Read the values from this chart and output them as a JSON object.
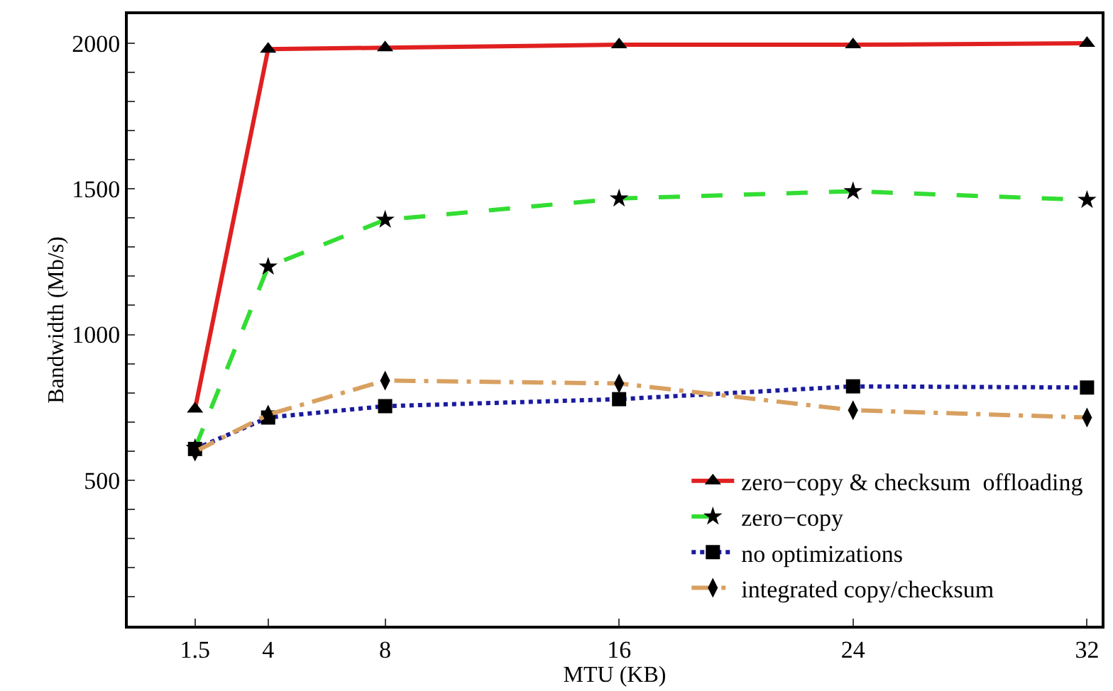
{
  "chart_data": {
    "type": "line",
    "xlabel": "MTU (KB)",
    "ylabel": "Bandwidth (Mb/s)",
    "x": [
      1.5,
      4,
      8,
      16,
      24,
      32
    ],
    "xlim": [
      -0.8,
      32.5
    ],
    "xticks": [
      1.5,
      4,
      8,
      16,
      24,
      32
    ],
    "ylim": [
      0,
      2100
    ],
    "yticks": [
      {
        "value": 100,
        "label": null
      },
      {
        "value": 200,
        "label": null
      },
      {
        "value": 300,
        "label": null
      },
      {
        "value": 400,
        "label": null
      },
      500,
      {
        "value": 600,
        "label": null
      },
      {
        "value": 700,
        "label": null
      },
      {
        "value": 800,
        "label": null
      },
      {
        "value": 900,
        "label": null
      },
      1000,
      {
        "value": 1100,
        "label": null
      },
      {
        "value": 1200,
        "label": null
      },
      {
        "value": 1300,
        "label": null
      },
      {
        "value": 1400,
        "label": null
      },
      1500,
      {
        "value": 1600,
        "label": null
      },
      {
        "value": 1700,
        "label": null
      },
      {
        "value": 1800,
        "label": null
      },
      {
        "value": 1900,
        "label": null
      },
      2000
    ],
    "grid": false,
    "legend": "bottom right",
    "series": [
      {
        "name": "zero−copy & checksum  offloading",
        "color": "#e02020",
        "marker": "triangle",
        "line_style": "solid",
        "values": [
          744,
          1980,
          1985,
          1995,
          1995,
          2000
        ]
      },
      {
        "name": "zero−copy",
        "color": "#33dd33",
        "marker": "star",
        "line_style": "dashed",
        "values": [
          610,
          1233,
          1394,
          1467,
          1492,
          1462
        ]
      },
      {
        "name": "no optimizations",
        "color": "#1a1aa0",
        "marker": "square",
        "line_style": "dotted",
        "values": [
          607,
          715,
          754,
          778,
          822,
          818
        ]
      },
      {
        "name": "integrated copy/checksum",
        "color": "#d8a060",
        "marker": "diamond",
        "line_style": "dashdot",
        "values": [
          598,
          725,
          842,
          832,
          740,
          715
        ]
      }
    ]
  }
}
